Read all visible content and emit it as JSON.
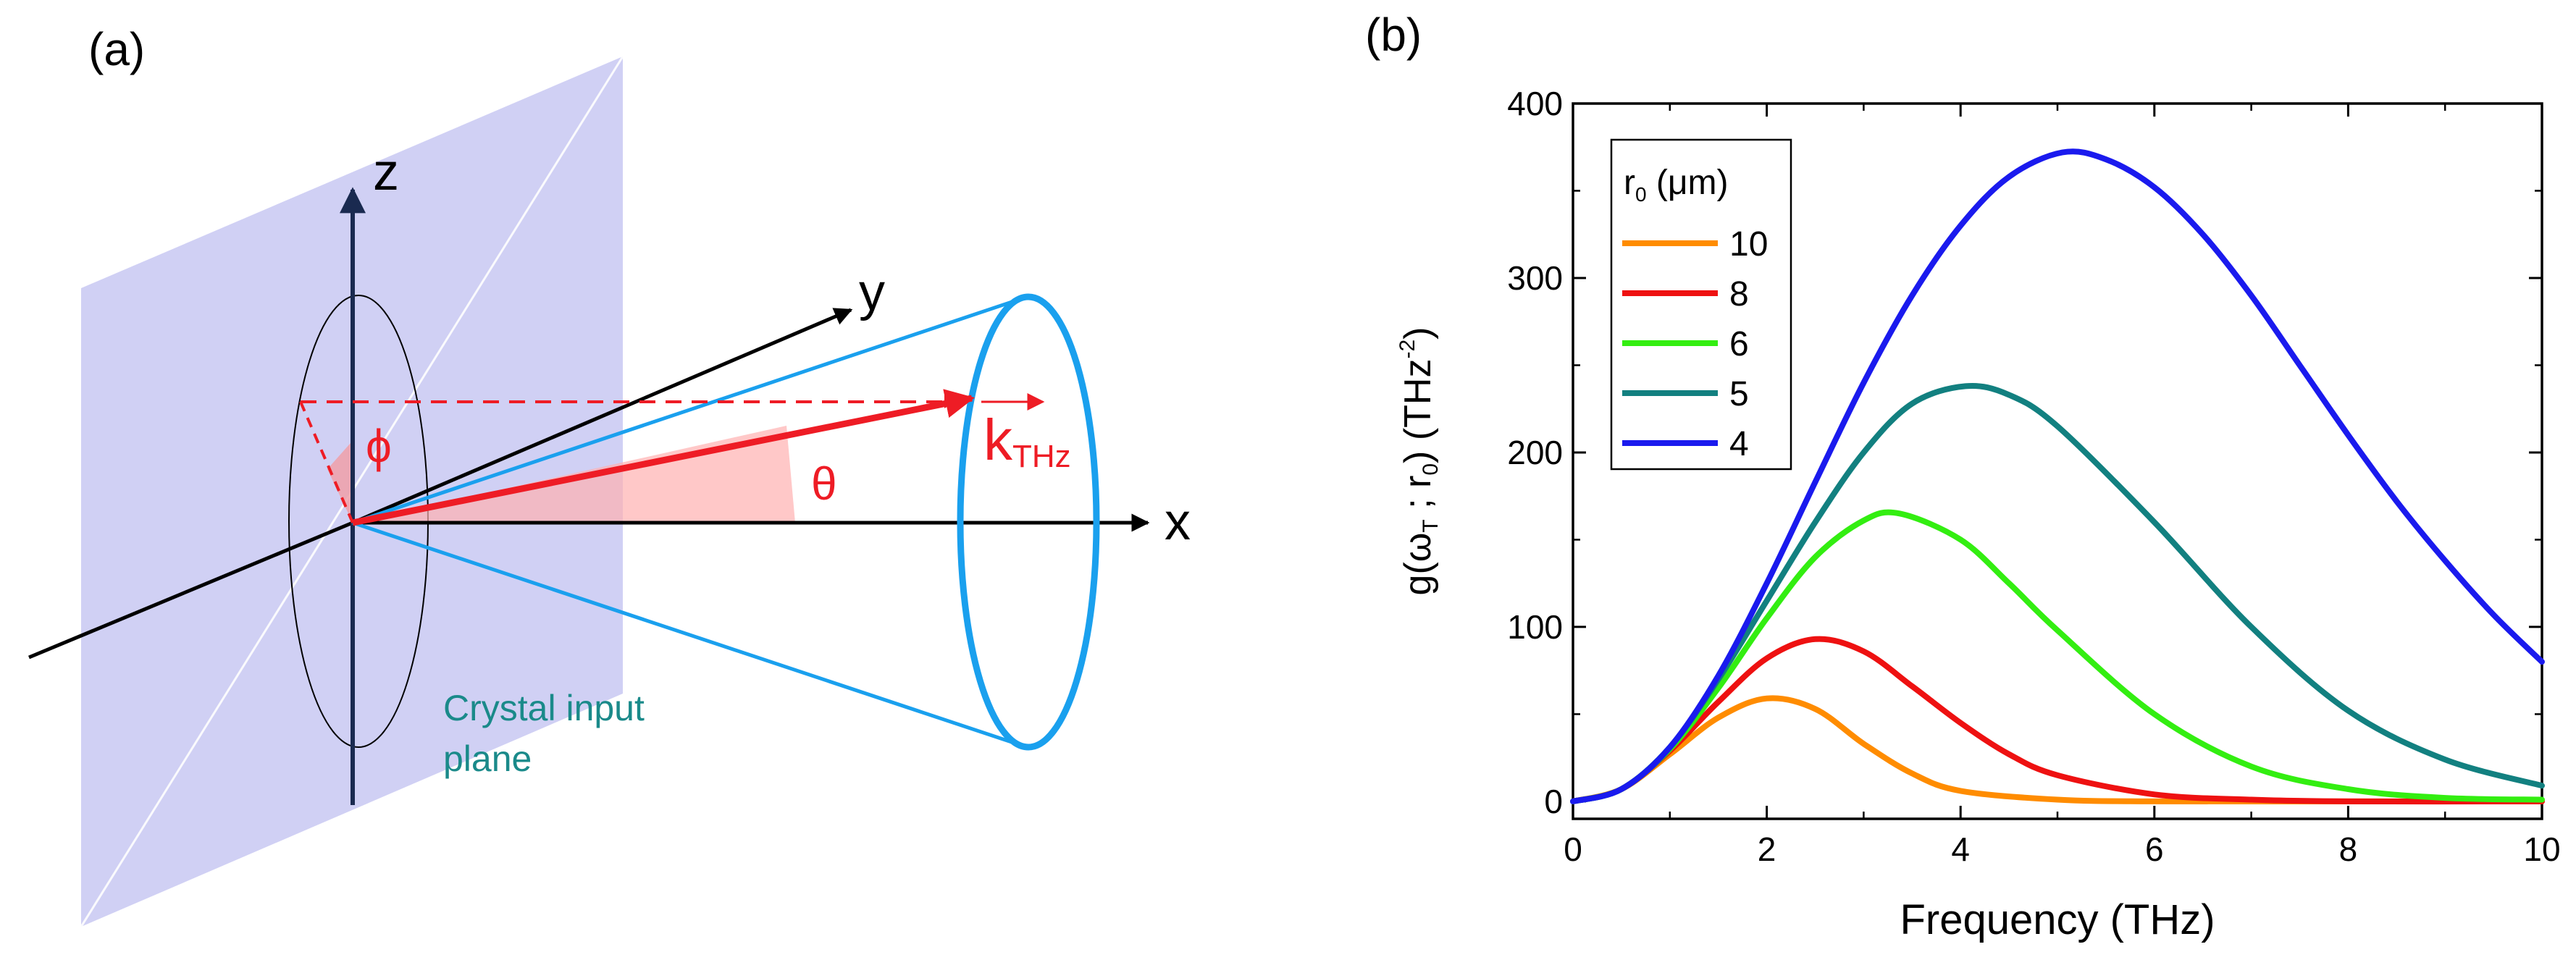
{
  "panel_a": {
    "label": "(a)",
    "axis_x": "x",
    "axis_y": "y",
    "axis_z": "z",
    "phi": "ϕ",
    "theta": "θ",
    "k_main": "k",
    "k_sub": "THz",
    "plane_line1": "Crystal input",
    "plane_line2": "plane"
  },
  "colors": {
    "plane": "#c8c8f2",
    "red": "#ee1c25",
    "cone": "#1aa0ee",
    "plane_text": "#1a8a8a"
  },
  "chart_data": {
    "panel_label": "(b)",
    "type": "line",
    "xlabel": "Frequency (THz)",
    "ylabel": "g(ωT ; r0)   (THz⁻²)",
    "xlim": [
      0,
      10
    ],
    "ylim": [
      -10,
      400
    ],
    "xticks": [
      0,
      2,
      4,
      6,
      8,
      10
    ],
    "yticks": [
      0,
      100,
      200,
      300,
      400
    ],
    "legend_title": "r0 (μm)",
    "legend_position": "top-left",
    "series": [
      {
        "name": "10",
        "color": "#ff8c00",
        "peak_x": 2.03,
        "peak_y": 59,
        "x": [
          0,
          0.5,
          1,
          1.5,
          2,
          2.5,
          3,
          3.5,
          4,
          5,
          6,
          8,
          10
        ],
        "y": [
          0,
          7,
          27,
          48,
          59,
          53,
          33,
          16,
          6,
          1,
          0,
          0,
          0
        ]
      },
      {
        "name": "8",
        "color": "#ee1111",
        "peak_x": 2.52,
        "peak_y": 93,
        "x": [
          0,
          0.5,
          1,
          1.5,
          2,
          2.5,
          3,
          3.5,
          4,
          4.5,
          5,
          6,
          7,
          8,
          10
        ],
        "y": [
          0,
          7,
          29,
          57,
          82,
          93,
          86,
          66,
          45,
          27,
          15,
          4,
          1,
          0,
          0
        ]
      },
      {
        "name": "6",
        "color": "#33ee11",
        "peak_x": 3.37,
        "peak_y": 165,
        "x": [
          0,
          0.5,
          1,
          1.5,
          2,
          2.5,
          3,
          3.37,
          4,
          4.5,
          5,
          6,
          7,
          8,
          9,
          10
        ],
        "y": [
          0,
          7,
          30,
          65,
          105,
          140,
          161,
          165,
          150,
          125,
          98,
          50,
          20,
          7,
          2,
          1
        ]
      },
      {
        "name": "5",
        "color": "#128080",
        "peak_x": 4.05,
        "peak_y": 238,
        "x": [
          0,
          0.5,
          1,
          1.5,
          2,
          2.5,
          3,
          3.5,
          4.05,
          4.5,
          5,
          6,
          7,
          8,
          9,
          10
        ],
        "y": [
          0,
          7,
          31,
          70,
          115,
          160,
          200,
          228,
          238,
          233,
          215,
          160,
          100,
          52,
          24,
          9
        ]
      },
      {
        "name": "4",
        "color": "#1a1aee",
        "peak_x": 5.05,
        "peak_y": 372,
        "x": [
          0,
          0.5,
          1,
          1.5,
          2,
          2.5,
          3,
          3.5,
          4,
          4.5,
          5.05,
          5.5,
          6,
          6.5,
          7,
          7.5,
          8,
          8.5,
          9,
          9.5,
          10
        ],
        "y": [
          0,
          7,
          31,
          72,
          125,
          183,
          240,
          290,
          330,
          358,
          372,
          368,
          352,
          325,
          290,
          250,
          210,
          172,
          138,
          107,
          80
        ]
      }
    ]
  }
}
